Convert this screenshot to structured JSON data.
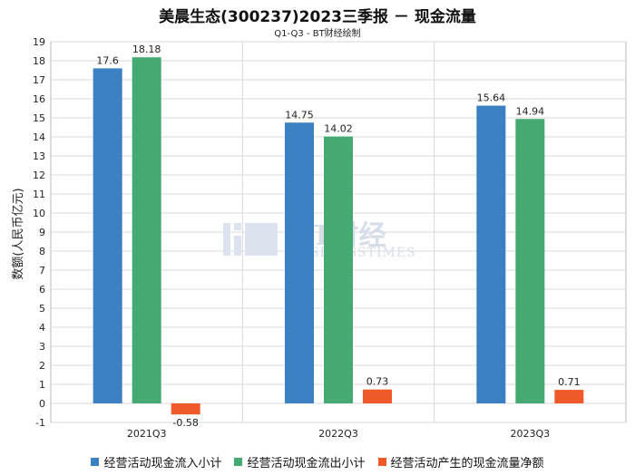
{
  "title": "美晨生态(300237)2023三季报 － 现金流量",
  "subtitle": "Q1-Q3 - BT财经绘制",
  "watermark": {
    "main": "BT财经",
    "sub": "BUSINESSTIMES"
  },
  "chart_data": {
    "type": "bar",
    "categories": [
      "2021Q3",
      "2022Q3",
      "2023Q3"
    ],
    "ylabel": "数额(人民币亿元)",
    "ylim": [
      -1,
      19
    ],
    "yticks": [
      -1,
      0,
      1,
      2,
      3,
      4,
      5,
      6,
      7,
      8,
      9,
      10,
      11,
      12,
      13,
      14,
      15,
      16,
      17,
      18,
      19
    ],
    "grid": true,
    "legend_position": "bottom",
    "series": [
      {
        "name": "经营活动现金流入小计",
        "color": "#3a80c3",
        "values": [
          17.6,
          14.75,
          15.64
        ],
        "labels": [
          "17.6",
          "14.75",
          "15.64"
        ]
      },
      {
        "name": "经营活动现金流出小计",
        "color": "#45aa72",
        "values": [
          18.18,
          14.02,
          14.94
        ],
        "labels": [
          "18.18",
          "14.02",
          "14.94"
        ]
      },
      {
        "name": "经营活动产生的现金流量净额",
        "color": "#ef5a28",
        "values": [
          -0.58,
          0.73,
          0.71
        ],
        "labels": [
          "-0.58",
          "0.73",
          "0.71"
        ]
      }
    ]
  }
}
